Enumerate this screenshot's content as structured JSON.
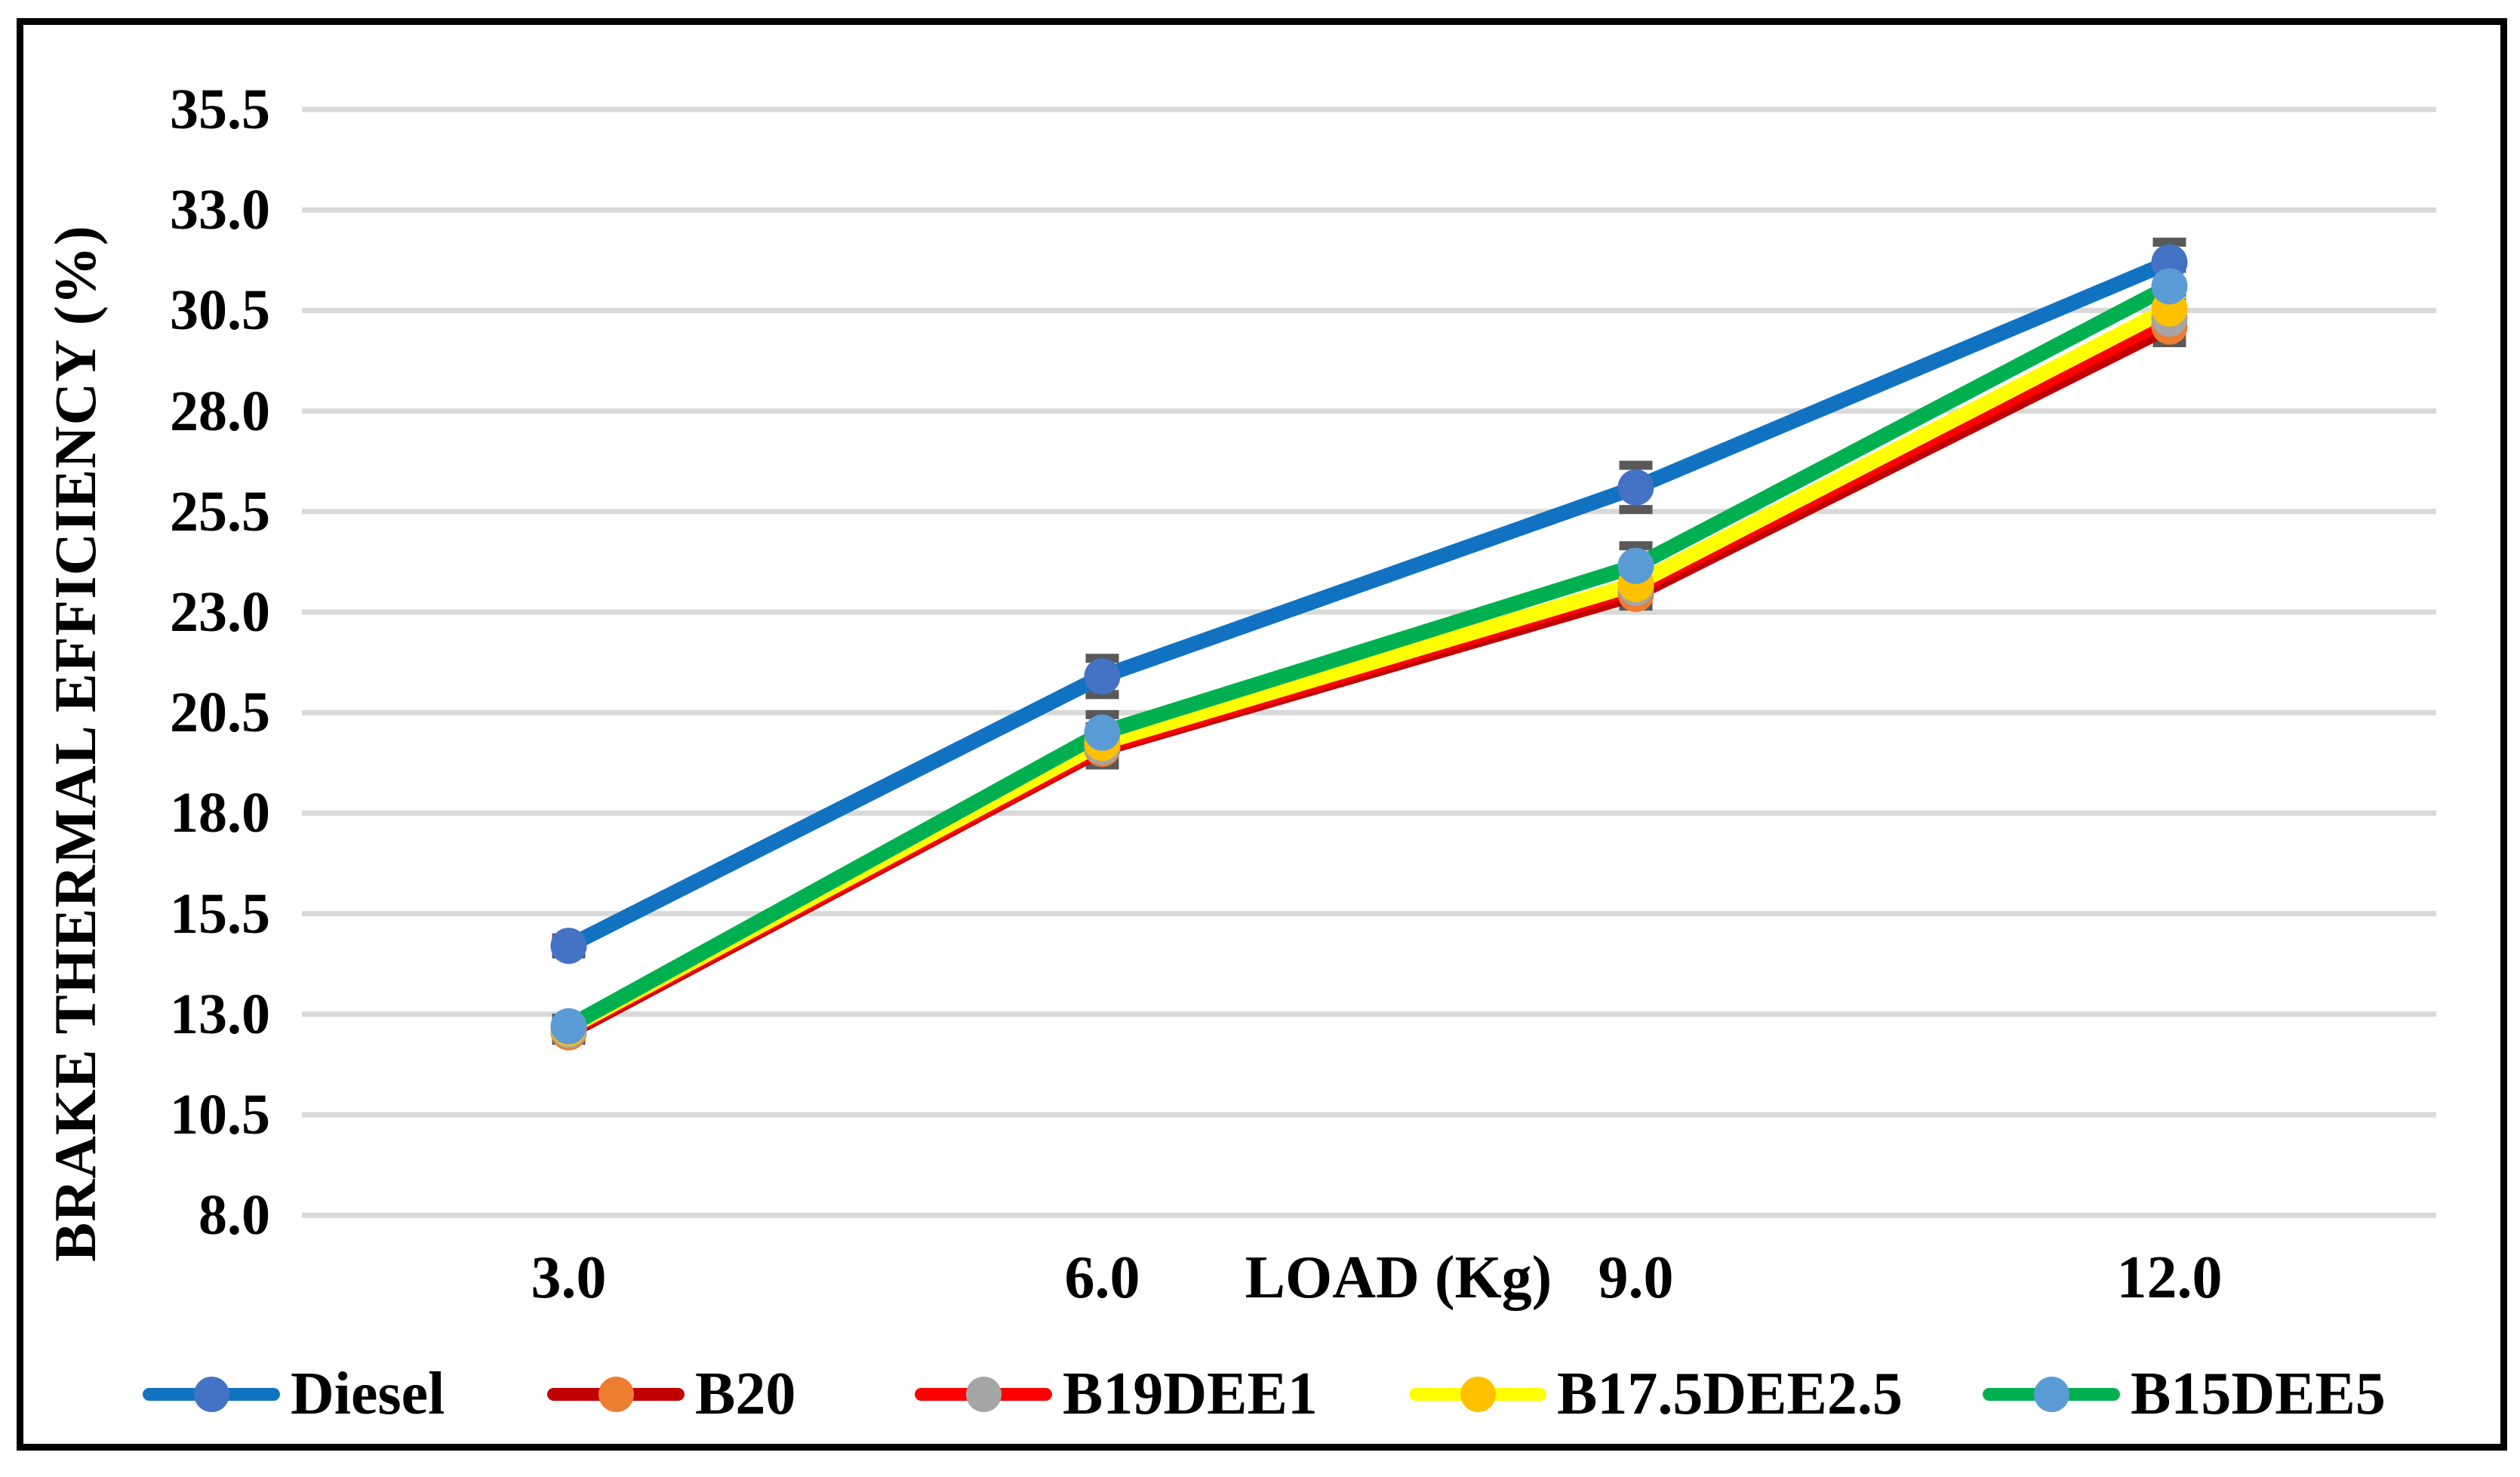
{
  "figure": {
    "y_axis_title": "BRAKE THERMAL EFFICIENCY (%)",
    "x_axis_title": "LOAD (Kg)"
  },
  "chart_data": {
    "type": "line",
    "title": "",
    "xlabel": "LOAD (Kg)",
    "ylabel": "BRAKE THERMAL EFFICIENCY (%)",
    "x": [
      3.0,
      6.0,
      9.0,
      12.0
    ],
    "x_tick_labels": [
      "3.0",
      "6.0",
      "9.0",
      "12.0"
    ],
    "y_ticks": [
      35.5,
      33.0,
      30.5,
      28.0,
      25.5,
      23.0,
      20.5,
      18.0,
      15.5,
      13.0,
      10.5,
      8.0
    ],
    "y_tick_labels": [
      "35.5",
      "33.0",
      "30.5",
      "28.0",
      "25.5",
      "23.0",
      "20.5",
      "18.0",
      "15.5",
      "13.0",
      "10.5",
      "8.0"
    ],
    "ylim": [
      8.0,
      35.5
    ],
    "grid": "horizontal",
    "gridline_color": "#D9D9D9",
    "error_bar_color": "#595959",
    "legend_position": "bottom",
    "series": [
      {
        "name": "Diesel",
        "line_color": "#1272C2",
        "marker_color": "#4472C4",
        "values": [
          14.7,
          21.4,
          26.1,
          31.7
        ],
        "error": [
          0.2,
          0.45,
          0.55,
          0.5
        ]
      },
      {
        "name": "B20",
        "line_color": "#C00000",
        "marker_color": "#ED7D31",
        "values": [
          12.55,
          19.6,
          23.45,
          30.1
        ],
        "error": [
          0.2,
          0.4,
          0.3,
          0.4
        ]
      },
      {
        "name": "B19DEE1",
        "line_color": "#FF0000",
        "marker_color": "#A5A5A5",
        "values": [
          12.6,
          19.65,
          23.6,
          30.3
        ],
        "error": [
          0.2,
          0.4,
          0.3,
          0.4
        ]
      },
      {
        "name": "B17.5DEE2.5",
        "line_color": "#FFFF00",
        "marker_color": "#FFC000",
        "values": [
          12.65,
          19.75,
          23.7,
          30.55
        ],
        "error": [
          0.2,
          0.4,
          0.3,
          0.4
        ]
      },
      {
        "name": "B15DEE5",
        "line_color": "#00B050",
        "marker_color": "#5B9BD5",
        "values": [
          12.7,
          20.0,
          24.15,
          31.1
        ],
        "error": [
          0.2,
          0.45,
          0.5,
          0.45
        ]
      }
    ]
  }
}
